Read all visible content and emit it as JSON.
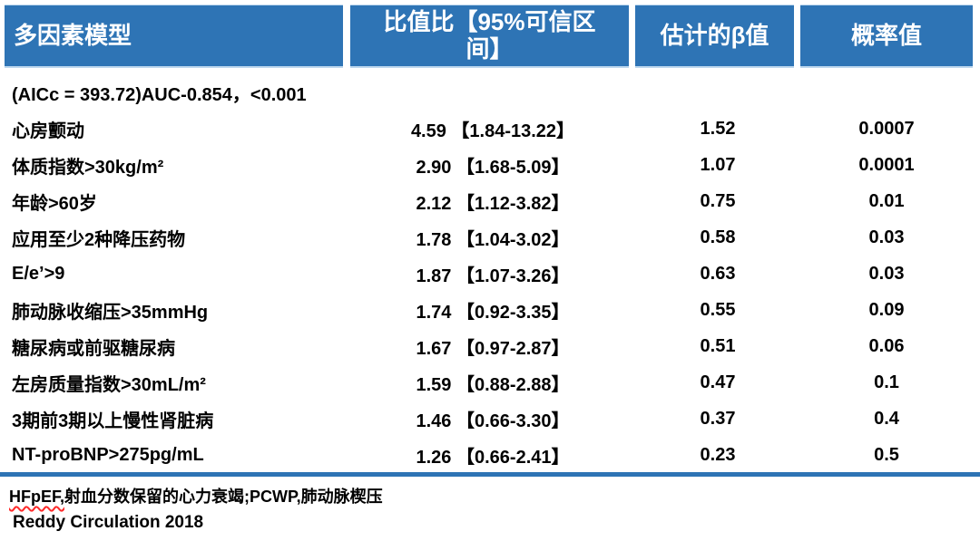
{
  "colors": {
    "header_bg": "#2E74B5",
    "header_text": "#FFFFFF",
    "body_text": "#000000",
    "divider_line": "#2E74B5",
    "spellcheck_underline": "#FF2A2A",
    "header_underline": "#BDD7EE"
  },
  "chart_data": {
    "type": "table",
    "columns": [
      "多因素模型",
      "比值比【95%可信区间】",
      "估计的β值",
      "概率值"
    ],
    "model_fit_row": "(AICc = 393.72)AUC-0.854，<0.001",
    "rows": [
      [
        "心房颤动",
        "4.59 【1.84-13.22】",
        "1.52",
        "0.0007"
      ],
      [
        "体质指数>30kg/m²",
        "2.90 【1.68-5.09】",
        "1.07",
        "0.0001"
      ],
      [
        "年龄>60岁",
        "2.12 【1.12-3.82】",
        "0.75",
        "0.01"
      ],
      [
        "应用至少2种降压药物",
        "1.78 【1.04-3.02】",
        "0.58",
        "0.03"
      ],
      [
        "E/e’>9",
        "1.87 【1.07-3.26】",
        "0.63",
        "0.03"
      ],
      [
        "肺动脉收缩压>35mmHg",
        "1.74 【0.92-3.35】",
        "0.55",
        "0.09"
      ],
      [
        "糖尿病或前驱糖尿病",
        "1.67 【0.97-2.87】",
        "0.51",
        "0.06"
      ],
      [
        "左房质量指数>30mL/m²",
        "1.59 【0.88-2.88】",
        "0.47",
        "0.1"
      ],
      [
        "3期前3期以上慢性肾脏病",
        "1.46 【0.66-3.30】",
        "0.37",
        "0.4"
      ],
      [
        "NT-proBNP>275pg/mL",
        "1.26 【0.66-2.41】",
        "0.23",
        "0.5"
      ]
    ],
    "footnote_term": "HFpEF,",
    "footnote_rest": "射血分数保留的心力衰竭;PCWP,肺动脉楔压",
    "citation": "Reddy Circulation 2018"
  }
}
